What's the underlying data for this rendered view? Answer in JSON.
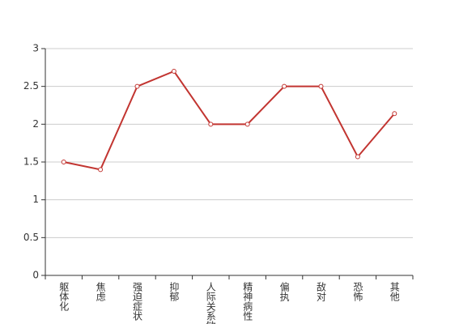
{
  "chart_data": {
    "type": "line",
    "categories": [
      "躯体化",
      "焦虑",
      "强迫症状",
      "抑郁",
      "人际关系敏感",
      "精神病性",
      "偏执",
      "敌对",
      "恐怖",
      "其他"
    ],
    "series": [
      {
        "color": "#c23531",
        "values": [
          1.5,
          1.4,
          2.5,
          2.7,
          2.0,
          2.0,
          2.5,
          2.5,
          1.57,
          2.14
        ]
      }
    ],
    "ylim": [
      0,
      3
    ],
    "yticks": [
      0,
      0.5,
      1,
      1.5,
      2,
      2.5,
      3
    ],
    "grid": true
  }
}
